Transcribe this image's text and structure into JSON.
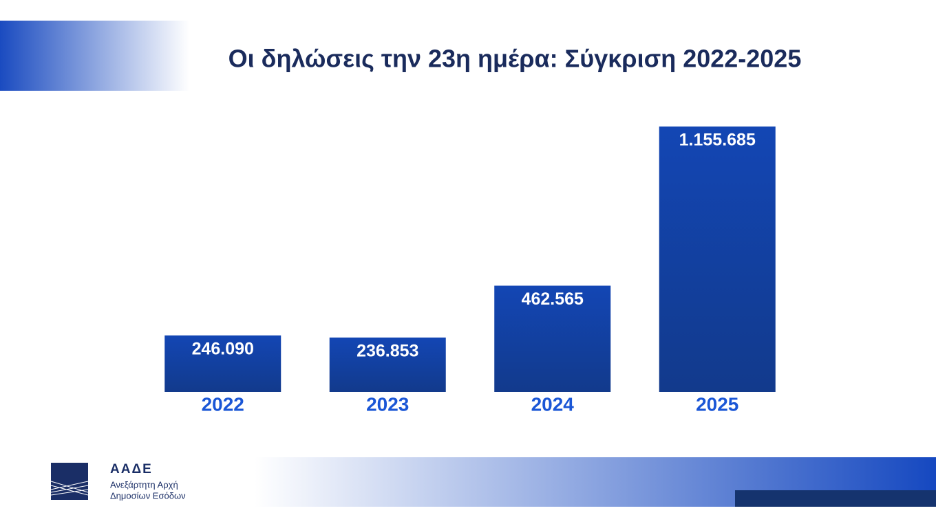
{
  "chart_data": {
    "type": "bar",
    "title": "Οι δηλώσεις την 23η ημέρα: Σύγκριση 2022-2025",
    "categories": [
      "2022",
      "2023",
      "2024",
      "2025"
    ],
    "values": [
      246090,
      236853,
      462565,
      1155685
    ],
    "value_labels": [
      "246.090",
      "236.853",
      "462.565",
      "1.155.685"
    ],
    "color": "#1346b4",
    "ylim": [
      0,
      1200000
    ]
  },
  "logo": {
    "name": "ΑΑΔΕ",
    "line1": "Ανεξάρτητη Αρχή",
    "line2": "Δημοσίων Εσόδων"
  }
}
